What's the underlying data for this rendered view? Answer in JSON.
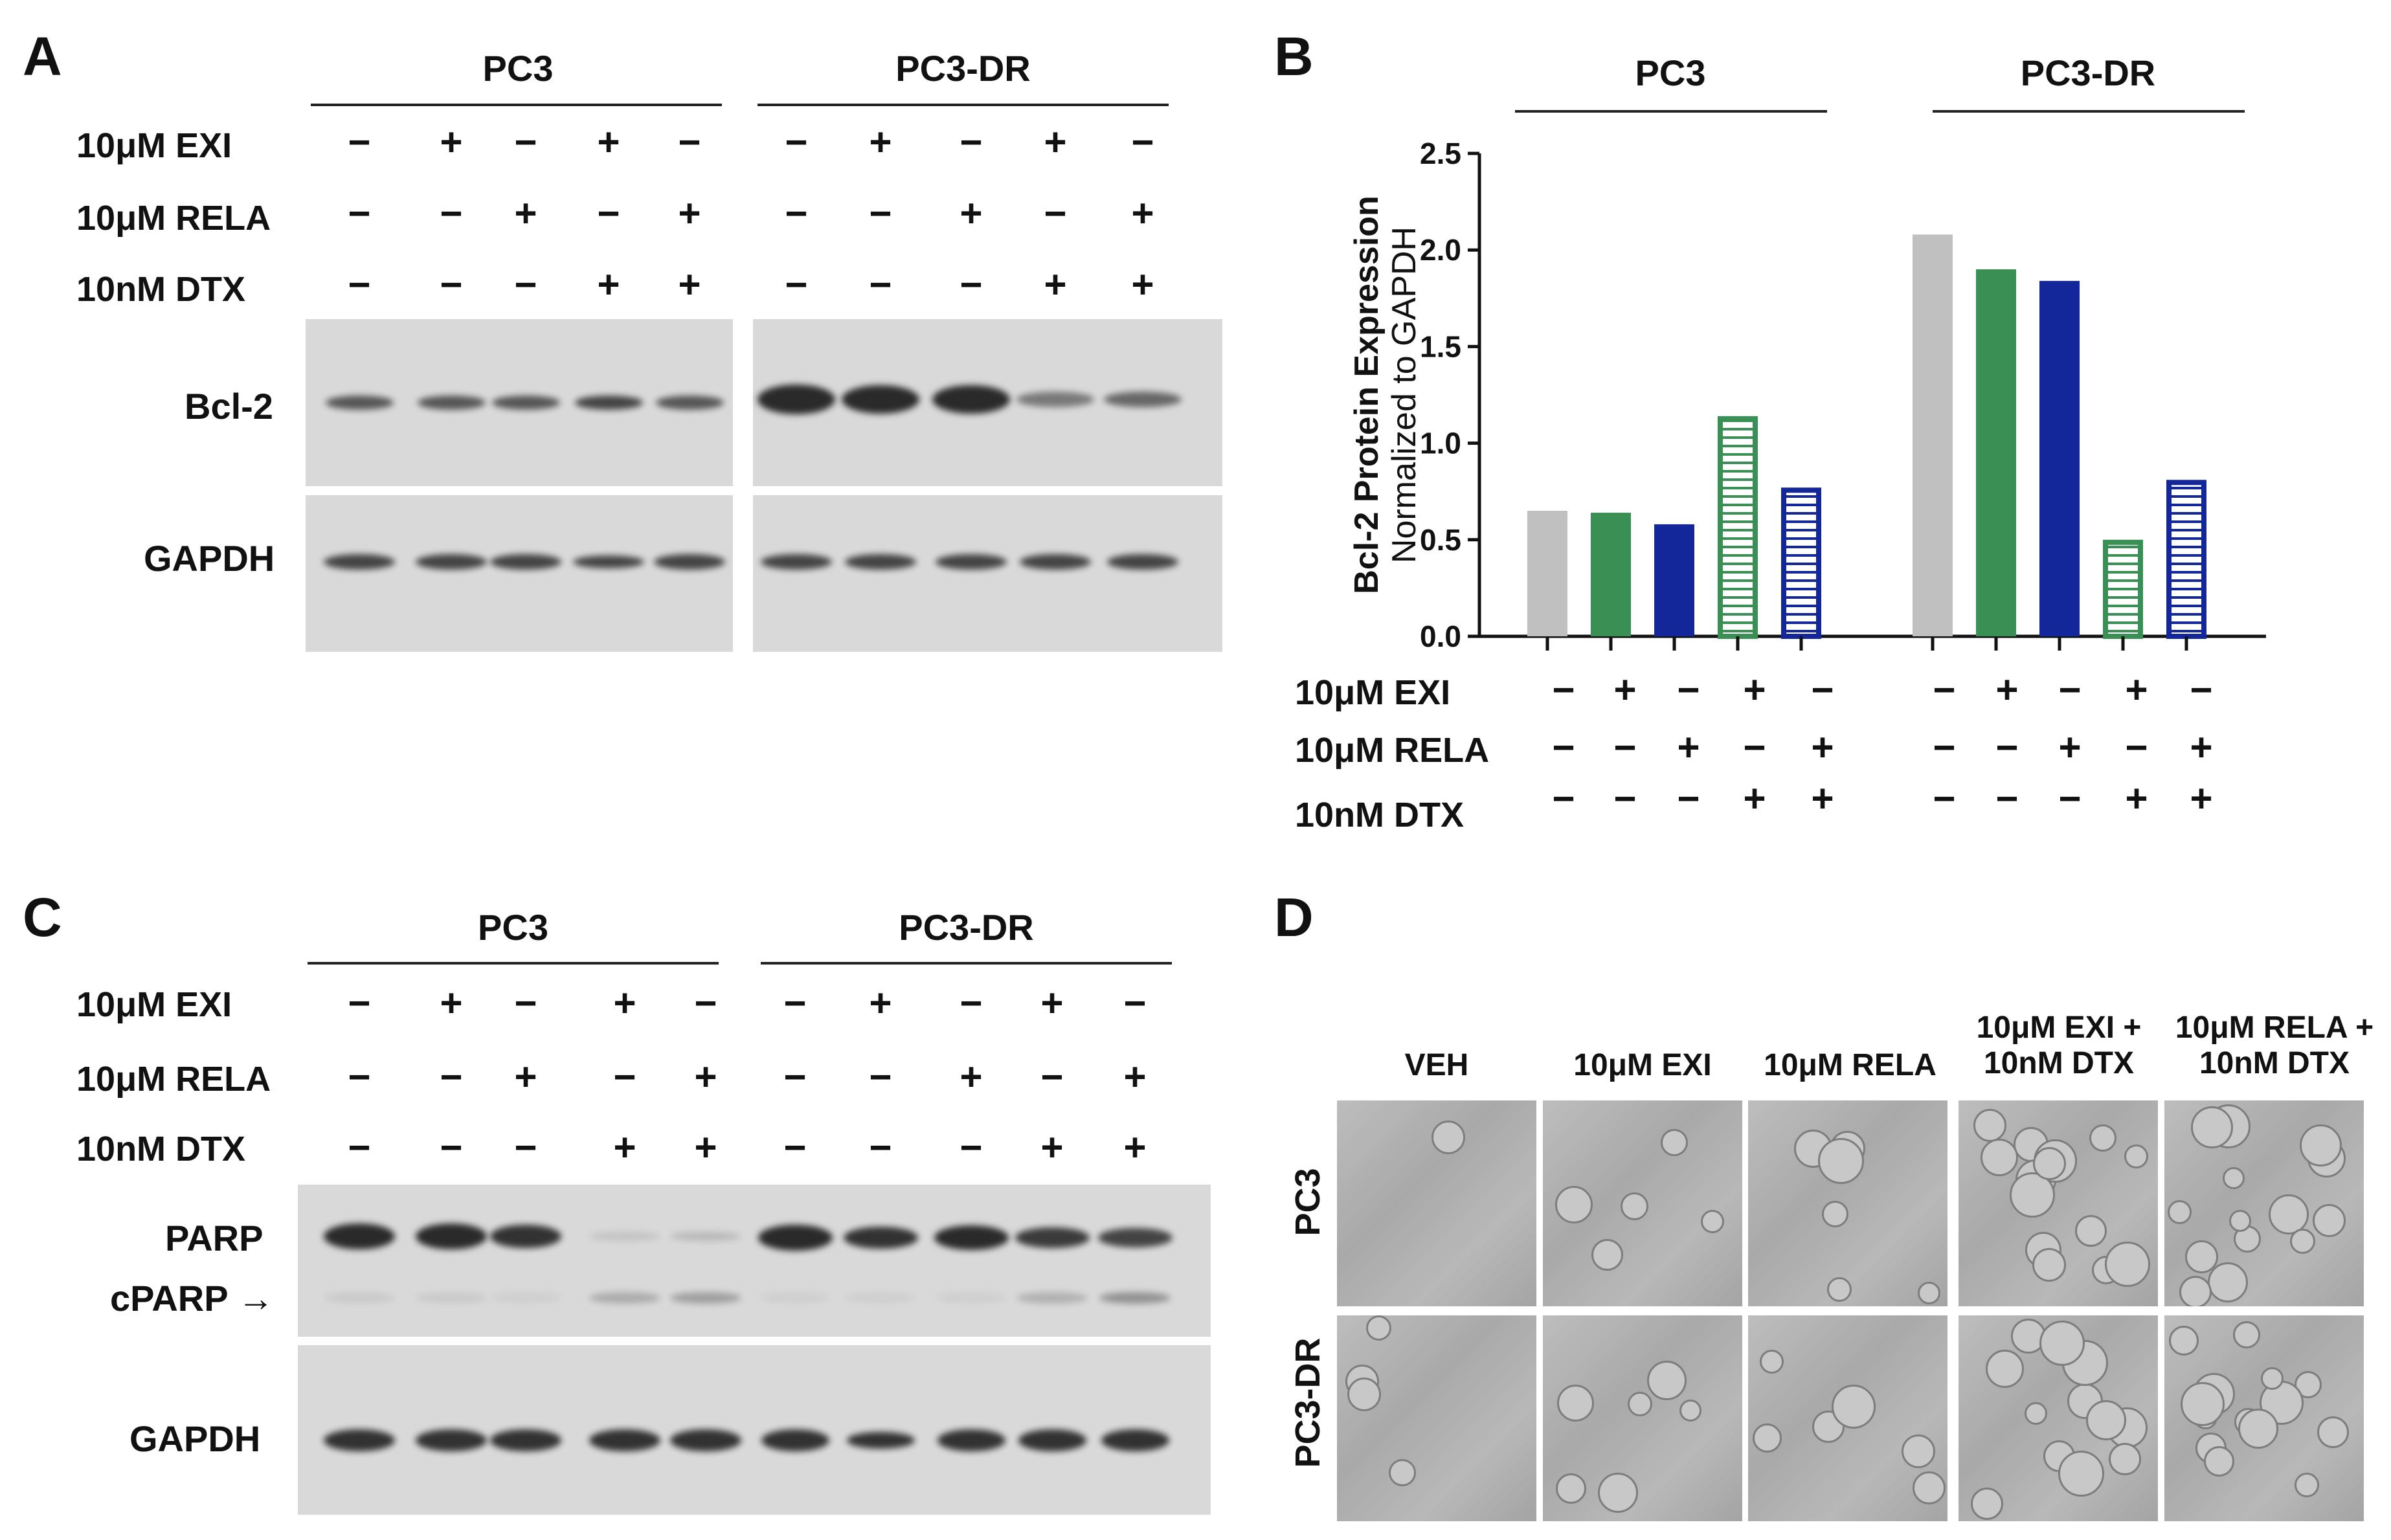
{
  "panel_letters": [
    "A",
    "B",
    "C",
    "D"
  ],
  "groups": [
    "PC3",
    "PC3-DR"
  ],
  "treatments": [
    {
      "label": "10μM EXI",
      "signs": [
        "−",
        "+",
        "−",
        "+",
        "−"
      ]
    },
    {
      "label": "10μM RELA",
      "signs": [
        "−",
        "−",
        "+",
        "−",
        "+"
      ]
    },
    {
      "label": "10nM DTX",
      "signs": [
        "−",
        "−",
        "−",
        "+",
        "+"
      ]
    }
  ],
  "panelA": {
    "blot_labels": [
      "Bcl-2",
      "GAPDH"
    ]
  },
  "panelC": {
    "blot_labels": [
      "PARP",
      "cPARP →",
      "GAPDH"
    ]
  },
  "panelD": {
    "column_headers": [
      "VEH",
      "10μM EXI",
      "10μM RELA",
      "10μM EXI +\n10nM DTX",
      "10μM RELA +\n10nM DTX"
    ],
    "row_labels": [
      "PC3",
      "PC3-DR"
    ]
  },
  "chart_data": {
    "type": "bar",
    "ylabel": "Bcl-2 Protein Expression\nNormalized to GAPDH",
    "ylim": [
      0,
      2.5
    ],
    "yticks": [
      "0.0",
      "0.5",
      "1.0",
      "1.5",
      "2.0",
      "2.5"
    ],
    "groups": [
      "PC3",
      "PC3-DR"
    ],
    "bar_styles": [
      "solid-gray",
      "solid-green",
      "solid-navy",
      "striped-green",
      "striped-navy"
    ],
    "colors": {
      "gray": "#c0c0c0",
      "green": "#3a8f55",
      "navy": "#14279a"
    },
    "values": {
      "PC3": [
        0.65,
        0.64,
        0.58,
        1.14,
        0.77
      ],
      "PC3-DR": [
        2.08,
        1.9,
        1.84,
        0.5,
        0.81
      ]
    }
  }
}
